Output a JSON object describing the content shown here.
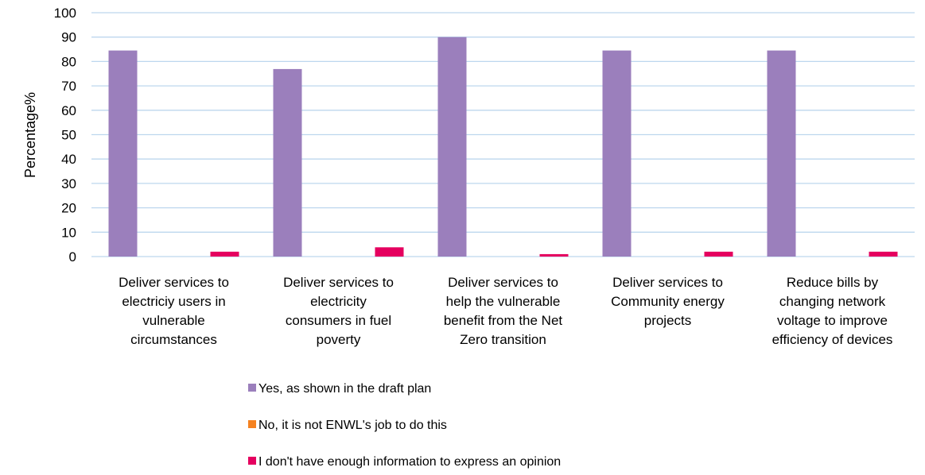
{
  "chart_data": {
    "type": "bar",
    "ylabel": "Percentage%",
    "ylim": [
      0,
      100
    ],
    "yticks": [
      0,
      10,
      20,
      30,
      40,
      50,
      60,
      70,
      80,
      90,
      100
    ],
    "grid": true,
    "legend_position": "bottom",
    "categories": [
      [
        "Deliver services to",
        "electriciy users in",
        "vulnerable",
        "circumstances"
      ],
      [
        "Deliver services to",
        "electricity",
        "consumers in fuel",
        "poverty"
      ],
      [
        "Deliver services to",
        "help the vulnerable",
        "benefit from the Net",
        "Zero transition"
      ],
      [
        "Deliver services to",
        "Community energy",
        "projects"
      ],
      [
        "Reduce bills by",
        "changing network",
        "voltage to improve",
        "efficiency of devices"
      ]
    ],
    "series": [
      {
        "name": "Yes, as shown in the draft plan",
        "color": "#9b7fbc",
        "values": [
          84.5,
          76.9,
          90.0,
          84.5,
          84.5
        ]
      },
      {
        "name": "No, it is not ENWL's job to do this",
        "color": "#f58220",
        "values": [
          0,
          0,
          0,
          0,
          0
        ]
      },
      {
        "name": "I don't have enough information to express an opinion",
        "color": "#e5005f",
        "values": [
          2.0,
          3.8,
          1.0,
          2.0,
          2.0
        ]
      }
    ],
    "colors": {
      "grid": "#bdd7ee",
      "axis": "#bdd7ee"
    }
  }
}
